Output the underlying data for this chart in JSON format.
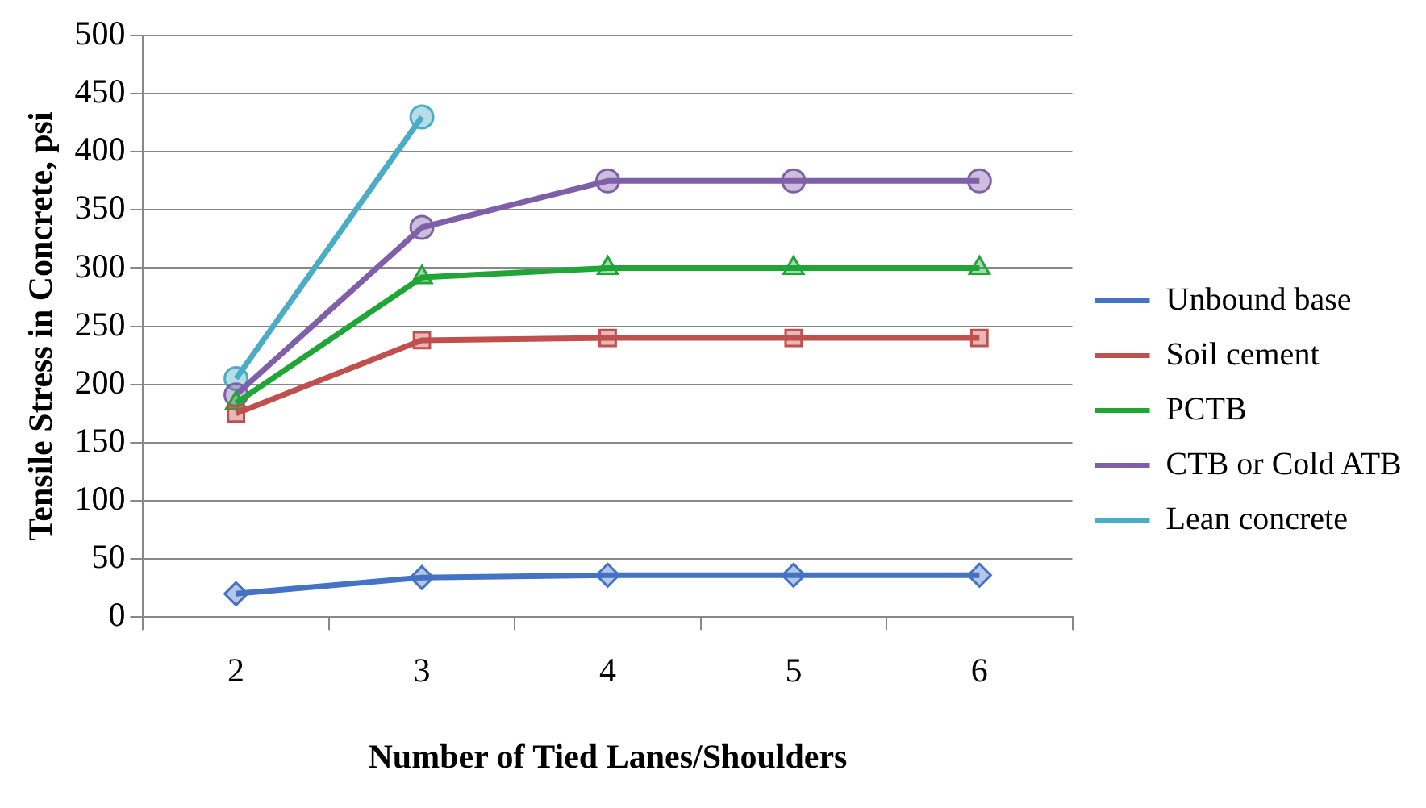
{
  "chart_data": {
    "type": "line",
    "xlabel": "Number of Tied Lanes/Shoulders",
    "ylabel": "Tensile Stress in Concrete, psi",
    "categories": [
      "2",
      "3",
      "4",
      "5",
      "6"
    ],
    "series": [
      {
        "name": "Unbound base",
        "color": "#4472c4",
        "marker": "diamond",
        "values": [
          20,
          34,
          36,
          36,
          36
        ]
      },
      {
        "name": "Soil cement",
        "color": "#c0504d",
        "marker": "square",
        "values": [
          175,
          238,
          240,
          240,
          240
        ]
      },
      {
        "name": "PCTB",
        "color": "#1fa637",
        "marker": "triangle",
        "values": [
          184,
          292,
          300,
          300,
          300
        ]
      },
      {
        "name": "CTB or Cold ATB",
        "color": "#7f5fa8",
        "marker": "circle",
        "values": [
          191,
          335,
          375,
          375,
          375
        ]
      },
      {
        "name": "Lean concrete",
        "color": "#4bacc6",
        "marker": "circle",
        "values": [
          205,
          430,
          null,
          null,
          null
        ]
      }
    ],
    "ylim": [
      0,
      500
    ],
    "yticks": [
      0,
      50,
      100,
      150,
      200,
      250,
      300,
      350,
      400,
      450,
      500
    ],
    "grid": "y",
    "legend": "right",
    "line_style": "solid"
  }
}
